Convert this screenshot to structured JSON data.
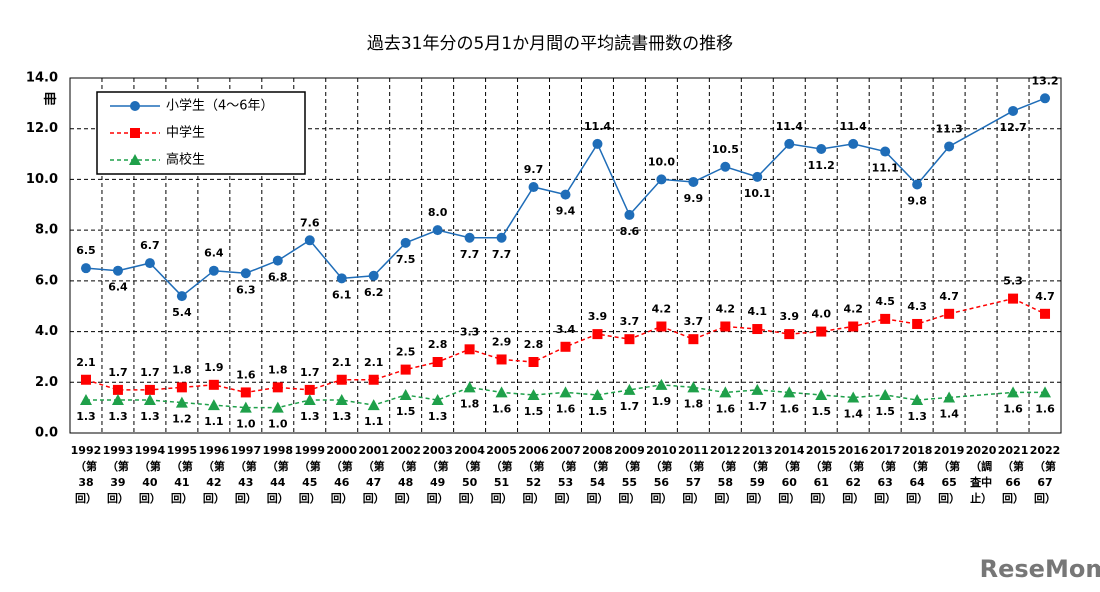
{
  "chart_data": {
    "type": "line",
    "title": "過去31年分の5月1か月間の平均読書冊数の推移",
    "y_unit_label": "冊",
    "watermark": "ReseMom",
    "categories": [
      [
        "1992",
        "（第",
        "38",
        "回）"
      ],
      [
        "1993",
        "（第",
        "39",
        "回）"
      ],
      [
        "1994",
        "（第",
        "40",
        "回）"
      ],
      [
        "1995",
        "（第",
        "41",
        "回）"
      ],
      [
        "1996",
        "（第",
        "42",
        "回）"
      ],
      [
        "1997",
        "（第",
        "43",
        "回）"
      ],
      [
        "1998",
        "（第",
        "44",
        "回）"
      ],
      [
        "1999",
        "（第",
        "45",
        "回）"
      ],
      [
        "2000",
        "（第",
        "46",
        "回）"
      ],
      [
        "2001",
        "（第",
        "47",
        "回）"
      ],
      [
        "2002",
        "（第",
        "48",
        "回）"
      ],
      [
        "2003",
        "（第",
        "49",
        "回）"
      ],
      [
        "2004",
        "（第",
        "50",
        "回）"
      ],
      [
        "2005",
        "（第",
        "51",
        "回）"
      ],
      [
        "2006",
        "（第",
        "52",
        "回）"
      ],
      [
        "2007",
        "（第",
        "53",
        "回）"
      ],
      [
        "2008",
        "（第",
        "54",
        "回）"
      ],
      [
        "2009",
        "（第",
        "55",
        "回）"
      ],
      [
        "2010",
        "（第",
        "56",
        "回）"
      ],
      [
        "2011",
        "（第",
        "57",
        "回）"
      ],
      [
        "2012",
        "（第",
        "58",
        "回）"
      ],
      [
        "2013",
        "（第",
        "59",
        "回）"
      ],
      [
        "2014",
        "（第",
        "60",
        "回）"
      ],
      [
        "2015",
        "（第",
        "61",
        "回）"
      ],
      [
        "2016",
        "（第",
        "62",
        "回）"
      ],
      [
        "2017",
        "（第",
        "63",
        "回）"
      ],
      [
        "2018",
        "（第",
        "64",
        "回）"
      ],
      [
        "2019",
        "（第",
        "65",
        "回）"
      ],
      [
        "2020",
        "（調",
        "査中",
        "止）"
      ],
      [
        "2021",
        "（第",
        "66",
        "回）"
      ],
      [
        "2022",
        "（第",
        "67",
        "回）"
      ]
    ],
    "series": [
      {
        "name": "小学生（4～6年）",
        "color": "#1f6db8",
        "marker": "circle",
        "values": [
          6.5,
          6.4,
          6.7,
          5.4,
          6.4,
          6.3,
          6.8,
          7.6,
          6.1,
          6.2,
          7.5,
          8.0,
          7.7,
          7.7,
          9.7,
          9.4,
          11.4,
          8.6,
          10.0,
          9.9,
          10.5,
          10.1,
          11.4,
          11.2,
          11.4,
          11.1,
          9.8,
          11.3,
          null,
          12.7,
          13.2
        ],
        "value_labels": [
          "6.5",
          "6.4",
          "6.7",
          "5.4",
          "6.4",
          "6.3",
          "6.8",
          "7.6",
          "6.1",
          "6.2",
          "7.5",
          "8.0",
          "7.7",
          "7.7",
          "9.7",
          "9.4",
          "11.4",
          "8.6",
          "10.0",
          "9.9",
          "10.5",
          "10.1",
          "11.4",
          "11.2",
          "11.4",
          "11.1",
          "9.8",
          "11.3",
          null,
          "12.7",
          "13.2"
        ]
      },
      {
        "name": "中学生",
        "color": "#ff0000",
        "marker": "square",
        "dashed": true,
        "values": [
          2.1,
          1.7,
          1.7,
          1.8,
          1.9,
          1.6,
          1.8,
          1.7,
          2.1,
          2.1,
          2.5,
          2.8,
          3.3,
          2.9,
          2.8,
          3.4,
          3.9,
          3.7,
          4.2,
          3.7,
          4.2,
          4.1,
          3.9,
          4.0,
          4.2,
          4.5,
          4.3,
          4.7,
          null,
          5.3,
          4.7
        ],
        "value_labels": [
          "2.1",
          "1.7",
          "1.7",
          "1.8",
          "1.9",
          "1.6",
          "1.8",
          "1.7",
          "2.1",
          "2.1",
          "2.5",
          "2.8",
          "3.3",
          "2.9",
          "2.8",
          "3.4",
          "3.9",
          "3.7",
          "4.2",
          "3.7",
          "4.2",
          "4.1",
          "3.9",
          "4.0",
          "4.2",
          "4.5",
          "4.3",
          "4.7",
          null,
          "5.3",
          "4.7"
        ]
      },
      {
        "name": "高校生",
        "color": "#1fa04a",
        "marker": "triangle",
        "dashed": true,
        "values": [
          1.3,
          1.3,
          1.3,
          1.2,
          1.1,
          1.0,
          1.0,
          1.3,
          1.3,
          1.1,
          1.5,
          1.3,
          1.8,
          1.6,
          1.5,
          1.6,
          1.5,
          1.7,
          1.9,
          1.8,
          1.6,
          1.7,
          1.6,
          1.5,
          1.4,
          1.5,
          1.3,
          1.4,
          null,
          1.6,
          1.6
        ],
        "value_labels": [
          "1.3",
          "1.3",
          "1.3",
          "1.2",
          "1.1",
          "1.0",
          "1.0",
          "1.3",
          "1.3",
          "1.1",
          "1.5",
          "1.3",
          "1.8",
          "1.6",
          "1.5",
          "1.6",
          "1.5",
          "1.7",
          "1.9",
          "1.8",
          "1.6",
          "1.7",
          "1.6",
          "1.5",
          "1.4",
          "1.5",
          "1.3",
          "1.4",
          null,
          "1.6",
          "1.6"
        ]
      }
    ],
    "span_gaps": true,
    "ylim": [
      0,
      14
    ],
    "yticks": [
      {
        "value": 0,
        "label": "0.0"
      },
      {
        "value": 2,
        "label": "2.0"
      },
      {
        "value": 4,
        "label": "4.0"
      },
      {
        "value": 6,
        "label": "6.0"
      },
      {
        "value": 8,
        "label": "8.0"
      },
      {
        "value": 10,
        "label": "10.0"
      },
      {
        "value": 12,
        "label": "12.0"
      },
      {
        "value": 14,
        "label": "14.0"
      }
    ],
    "grid": true,
    "legend": "upper left"
  }
}
